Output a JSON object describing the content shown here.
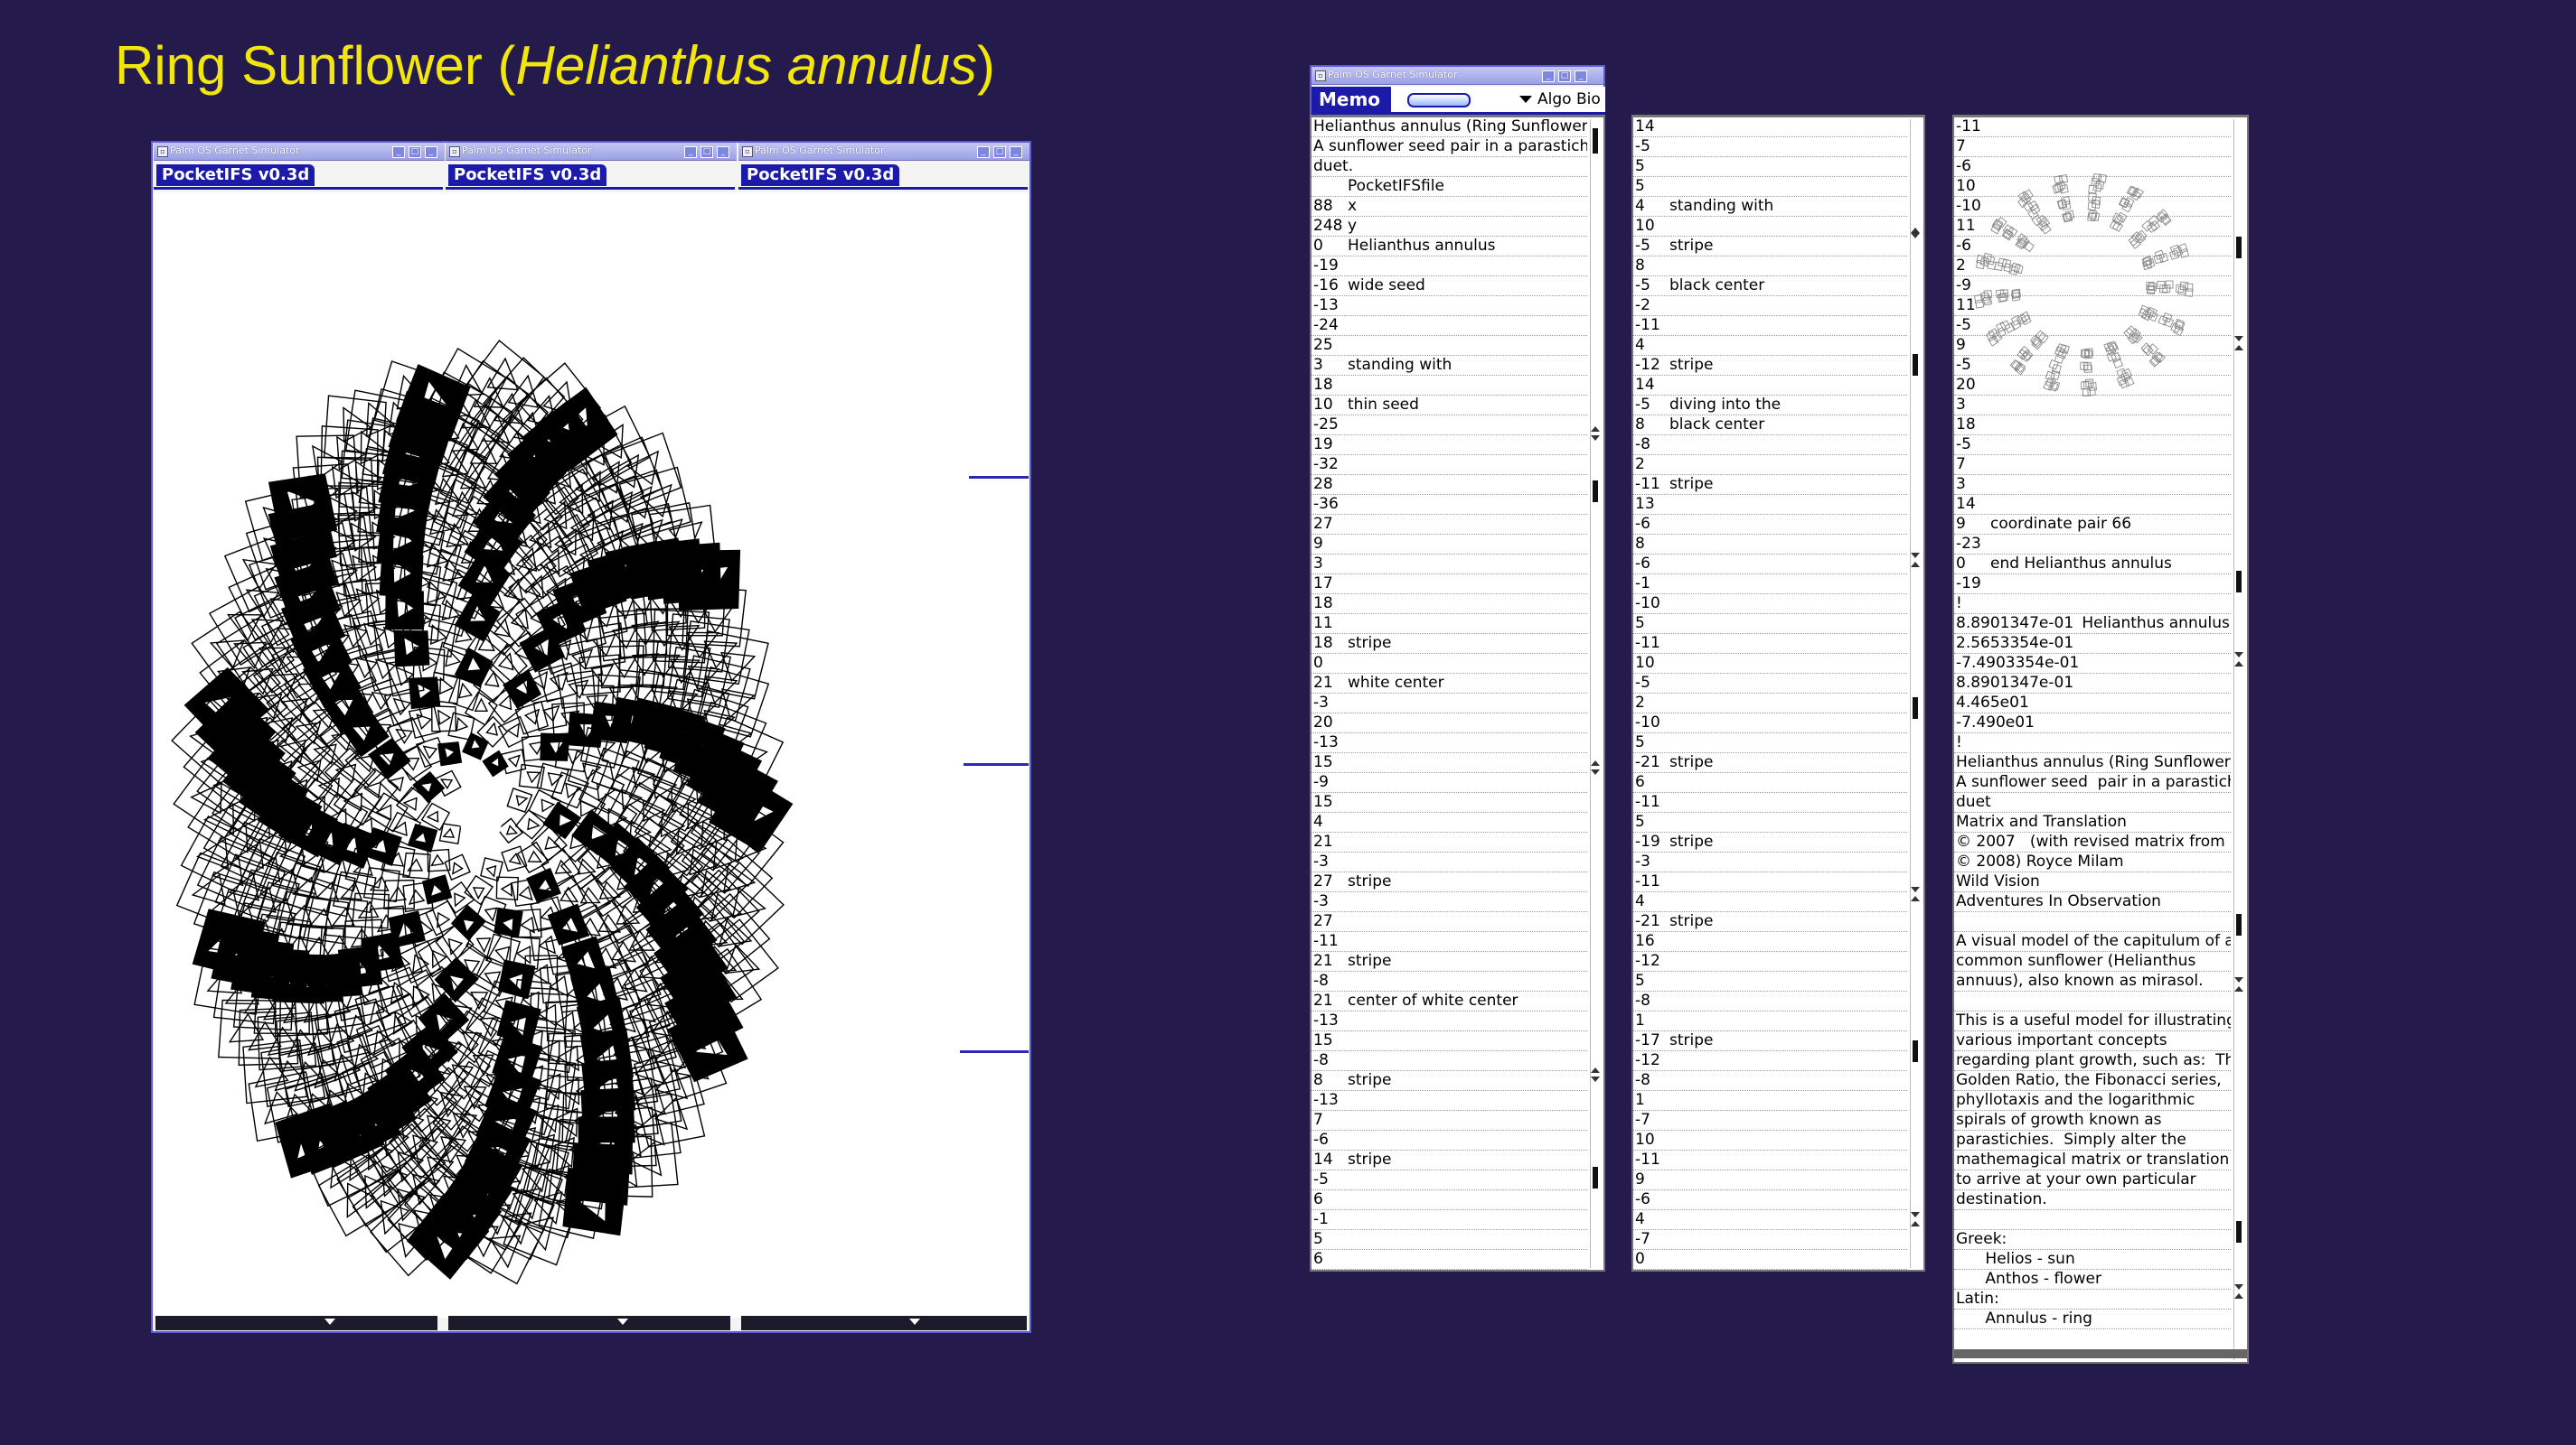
{
  "slide": {
    "title_prefix": "Ring Sunflower (",
    "title_italic": "Helianthus annulus",
    "title_suffix": ")"
  },
  "colors": {
    "background": "#241b4c",
    "title": "#f2e60c",
    "accent": "#1c1aa8"
  },
  "simulator_window": {
    "title": "Palm OS Garnet Simulator",
    "buttons": [
      "minimize",
      "maximize",
      "close"
    ]
  },
  "pocketifs": {
    "tabs": [
      "PocketIFS v0.3d",
      "PocketIFS v0.3d",
      "PocketIFS v0.3d"
    ]
  },
  "memo": {
    "window_title": "Palm OS Garnet Simulator",
    "app_label": "Memo",
    "category": "Algo Bio",
    "column1": [
      [
        "Helianthus annulus (Ring Sunflower)",
        ""
      ],
      [
        "A sunflower seed  pair in a  parastichy",
        ""
      ],
      [
        "duet.",
        ""
      ],
      [
        "",
        "PocketIFSfile"
      ],
      [
        "88",
        "x"
      ],
      [
        "248",
        "y"
      ],
      [
        "0",
        "Helianthus annulus"
      ],
      [
        "-19",
        ""
      ],
      [
        "-16",
        "wide seed"
      ],
      [
        "-13",
        ""
      ],
      [
        "-24",
        ""
      ],
      [
        "25",
        ""
      ],
      [
        "3",
        "standing with"
      ],
      [
        "18",
        ""
      ],
      [
        "10",
        "thin seed"
      ],
      [
        "-25",
        ""
      ],
      [
        "19",
        ""
      ],
      [
        "-32",
        ""
      ],
      [
        "28",
        ""
      ],
      [
        "-36",
        ""
      ],
      [
        "27",
        ""
      ],
      [
        "9",
        ""
      ],
      [
        "3",
        ""
      ],
      [
        "17",
        ""
      ],
      [
        "18",
        ""
      ],
      [
        "11",
        ""
      ],
      [
        "18",
        "stripe"
      ],
      [
        "0",
        ""
      ],
      [
        "21",
        "white center"
      ],
      [
        "-3",
        ""
      ],
      [
        "20",
        ""
      ],
      [
        "-13",
        ""
      ],
      [
        "15",
        ""
      ],
      [
        "-9",
        ""
      ],
      [
        "15",
        ""
      ],
      [
        "4",
        ""
      ],
      [
        "21",
        ""
      ],
      [
        "-3",
        ""
      ],
      [
        "27",
        "stripe"
      ],
      [
        "-3",
        ""
      ],
      [
        "27",
        ""
      ],
      [
        "-11",
        ""
      ],
      [
        "21",
        "stripe"
      ],
      [
        "-8",
        ""
      ],
      [
        "21",
        "center of white center"
      ],
      [
        "-13",
        ""
      ],
      [
        "15",
        ""
      ],
      [
        "-8",
        ""
      ],
      [
        "8",
        "stripe"
      ],
      [
        "-13",
        ""
      ],
      [
        "7",
        ""
      ],
      [
        "-6",
        ""
      ],
      [
        "14",
        "stripe"
      ],
      [
        "-5",
        ""
      ],
      [
        "6",
        ""
      ],
      [
        "-1",
        ""
      ],
      [
        "5",
        ""
      ],
      [
        "6",
        ""
      ]
    ],
    "column2": [
      [
        "14",
        ""
      ],
      [
        "-5",
        ""
      ],
      [
        "5",
        ""
      ],
      [
        "5",
        ""
      ],
      [
        "4",
        "standing with"
      ],
      [
        "10",
        ""
      ],
      [
        "-5",
        "stripe"
      ],
      [
        "8",
        ""
      ],
      [
        "-5",
        "black center"
      ],
      [
        "-2",
        ""
      ],
      [
        "-11",
        ""
      ],
      [
        "4",
        ""
      ],
      [
        "-12",
        "stripe"
      ],
      [
        "14",
        ""
      ],
      [
        "-5",
        "diving into the"
      ],
      [
        "8",
        "black center"
      ],
      [
        "-8",
        ""
      ],
      [
        "2",
        ""
      ],
      [
        "-11",
        "stripe"
      ],
      [
        "13",
        ""
      ],
      [
        "-6",
        ""
      ],
      [
        "8",
        ""
      ],
      [
        "-6",
        ""
      ],
      [
        "-1",
        ""
      ],
      [
        "-10",
        ""
      ],
      [
        "5",
        ""
      ],
      [
        "-11",
        ""
      ],
      [
        "10",
        ""
      ],
      [
        "-5",
        ""
      ],
      [
        "2",
        ""
      ],
      [
        "-10",
        ""
      ],
      [
        "5",
        ""
      ],
      [
        "-21",
        "stripe"
      ],
      [
        "6",
        ""
      ],
      [
        "-11",
        ""
      ],
      [
        "5",
        ""
      ],
      [
        "-19",
        "stripe"
      ],
      [
        "-3",
        ""
      ],
      [
        "-11",
        ""
      ],
      [
        "4",
        ""
      ],
      [
        "-21",
        "stripe"
      ],
      [
        "16",
        ""
      ],
      [
        "-12",
        ""
      ],
      [
        "5",
        ""
      ],
      [
        "-8",
        ""
      ],
      [
        "1",
        ""
      ],
      [
        "-17",
        "stripe"
      ],
      [
        "-12",
        ""
      ],
      [
        "-8",
        ""
      ],
      [
        "1",
        ""
      ],
      [
        "-7",
        ""
      ],
      [
        "10",
        ""
      ],
      [
        "-11",
        ""
      ],
      [
        "9",
        ""
      ],
      [
        "-6",
        ""
      ],
      [
        "4",
        ""
      ],
      [
        "-7",
        ""
      ],
      [
        "0",
        ""
      ]
    ],
    "column3_top": [
      [
        "-11",
        ""
      ],
      [
        "7",
        ""
      ],
      [
        "-6",
        ""
      ],
      [
        "10",
        ""
      ],
      [
        "-10",
        ""
      ],
      [
        "11",
        ""
      ],
      [
        "-6",
        ""
      ],
      [
        "2",
        ""
      ],
      [
        "-9",
        ""
      ],
      [
        "11",
        ""
      ],
      [
        "-5",
        ""
      ],
      [
        "9",
        ""
      ],
      [
        "-5",
        ""
      ],
      [
        "20",
        ""
      ],
      [
        "3",
        ""
      ],
      [
        "18",
        ""
      ],
      [
        "-5",
        ""
      ],
      [
        "7",
        ""
      ],
      [
        "3",
        ""
      ],
      [
        "14",
        ""
      ],
      [
        "9",
        "coordinate pair 66"
      ],
      [
        "-23",
        ""
      ],
      [
        "0",
        "end Helianthus annulus"
      ],
      [
        "-19",
        ""
      ],
      [
        "!",
        ""
      ],
      [
        "8.8901347e-01",
        "Helianthus annulus"
      ],
      [
        "2.5653354e-01",
        ""
      ],
      [
        "-7.4903354e-01",
        ""
      ],
      [
        "8.8901347e-01",
        ""
      ],
      [
        "4.465e01",
        ""
      ],
      [
        "-7.490e01",
        ""
      ],
      [
        "!",
        ""
      ]
    ],
    "column3_text": [
      "Helianthus annulus (Ring Sunflower)",
      "A sunflower seed  pair in a parastichy",
      "duet",
      "Matrix and Translation",
      "© 2007   (with revised matrix from",
      "© 2008) Royce Milam",
      "Wild Vision",
      "Adventures In Observation",
      "",
      "A visual model of the capitulum of a",
      "common sunflower (Helianthus",
      "annuus), also known as mirasol.",
      "",
      "This is a useful model for illustrating",
      "various important concepts",
      "regarding plant growth, such as:  The",
      "Golden Ratio, the Fibonacci series,",
      "phyllotaxis and the logarithmic",
      "spirals of growth known as",
      "parastichies.  Simply alter the",
      "mathemagical matrix or translation",
      "to arrive at your own particular",
      "destination.",
      "",
      "Greek:",
      "      Helios - sun",
      "      Anthos - flower",
      "Latin:",
      "      Annulus - ring"
    ]
  }
}
